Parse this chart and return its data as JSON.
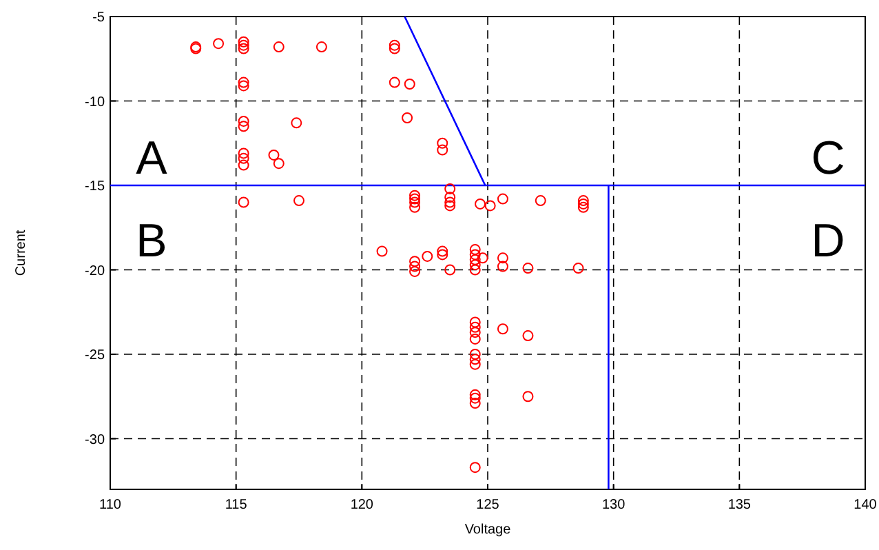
{
  "chart_data": {
    "type": "scatter",
    "xlabel": "Voltage",
    "ylabel": "Current",
    "xlim": [
      110,
      140
    ],
    "ylim": [
      -33,
      -5
    ],
    "xticks": [
      110,
      115,
      120,
      125,
      130,
      135,
      140
    ],
    "yticks": [
      -30,
      -25,
      -20,
      -15,
      -10,
      -5
    ],
    "grid": true,
    "series": [
      {
        "color": "#ff0000",
        "marker": "circle",
        "x": [
          113.4,
          113.4,
          114.3,
          115.3,
          115.3,
          115.3,
          116.7,
          118.4,
          121.3,
          121.3,
          115.3,
          115.3,
          121.3,
          121.9,
          115.3,
          115.3,
          117.4,
          121.8,
          123.2,
          123.2,
          115.3,
          115.3,
          115.3,
          116.5,
          116.7,
          115.3,
          117.5,
          122.1,
          122.1,
          122.1,
          122.1,
          123.5,
          123.5,
          123.5,
          123.5,
          124.7,
          125.1,
          125.6,
          127.1,
          128.8,
          128.8,
          128.8,
          120.8,
          122.1,
          122.1,
          122.1,
          122.6,
          123.2,
          123.2,
          123.5,
          124.5,
          124.5,
          124.5,
          124.5,
          124.5,
          124.8,
          125.6,
          125.6,
          126.6,
          128.6,
          124.5,
          124.5,
          124.5,
          124.5,
          125.6,
          126.6,
          124.5,
          124.5,
          124.5,
          124.5,
          124.5,
          124.5,
          126.6,
          124.5
        ],
        "values": [
          -6.8,
          -6.9,
          -6.6,
          -6.5,
          -6.7,
          -6.9,
          -6.8,
          -6.8,
          -6.7,
          -6.9,
          -8.9,
          -9.1,
          -8.9,
          -9.0,
          -11.2,
          -11.5,
          -11.3,
          -11.0,
          -12.5,
          -12.9,
          -13.1,
          -13.4,
          -13.8,
          -13.2,
          -13.7,
          -16.0,
          -15.9,
          -15.6,
          -15.8,
          -16.0,
          -16.3,
          -15.2,
          -15.7,
          -16.0,
          -16.2,
          -16.1,
          -16.2,
          -15.8,
          -15.9,
          -15.9,
          -16.1,
          -16.3,
          -18.9,
          -19.5,
          -19.8,
          -20.1,
          -19.2,
          -18.9,
          -19.1,
          -20.0,
          -18.8,
          -19.1,
          -19.4,
          -19.7,
          -20.0,
          -19.3,
          -19.3,
          -19.8,
          -19.9,
          -19.9,
          -23.1,
          -23.4,
          -23.7,
          -24.1,
          -23.5,
          -23.9,
          -25.0,
          -25.3,
          -25.6,
          -27.4,
          -27.6,
          -27.9,
          -27.5,
          -31.7
        ]
      },
      {
        "type": "line",
        "color": "#0000ff",
        "marker": "none",
        "line_style": "solid",
        "x": [
          121.7,
          124.9
        ],
        "values": [
          -5,
          -15
        ]
      },
      {
        "type": "line",
        "color": "#0000ff",
        "marker": "none",
        "line_style": "solid",
        "x": [
          129.8,
          129.8
        ],
        "values": [
          -15,
          -33
        ]
      }
    ],
    "ref_lines": [
      {
        "axis": "y",
        "value": -15,
        "color": "#0000ff",
        "line_style": "solid"
      }
    ],
    "annotations": [
      "A",
      "B",
      "C",
      "D"
    ]
  }
}
